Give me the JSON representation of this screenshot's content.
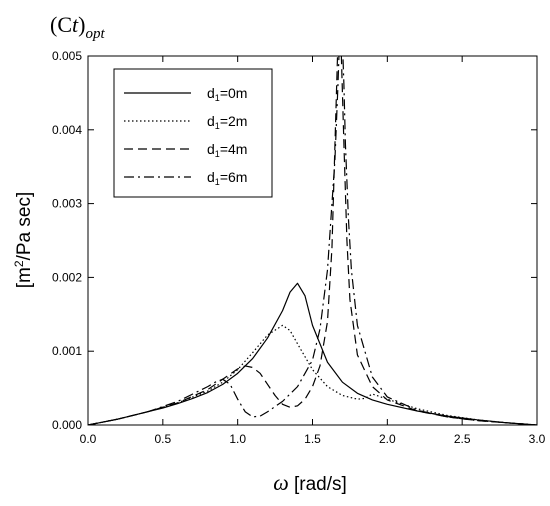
{
  "chart_data": {
    "type": "line",
    "title_main": "(C",
    "title_t": "t",
    "title_close": ")",
    "title_sub": "opt",
    "xlabel_symbol": "ω",
    "xlabel_unit": " [rad/s]",
    "ylabel_pre": "[m",
    "ylabel_sup": "2",
    "ylabel_post": "/Pa sec]",
    "xlim": [
      0.0,
      3.0
    ],
    "ylim": [
      0.0,
      0.005
    ],
    "xticks": [
      "0.0",
      "0.5",
      "1.0",
      "1.5",
      "2.0",
      "2.5",
      "3.0"
    ],
    "yticks": [
      "0.000",
      "0.001",
      "0.002",
      "0.003",
      "0.004",
      "0.005"
    ],
    "grid": false,
    "legend_position": "top-left",
    "series": [
      {
        "name_pre": "d",
        "name_sub": "1",
        "name_post": "=0m",
        "style": "solid",
        "x": [
          0.0,
          0.1,
          0.2,
          0.3,
          0.4,
          0.5,
          0.6,
          0.7,
          0.8,
          0.9,
          1.0,
          1.1,
          1.2,
          1.3,
          1.35,
          1.4,
          1.45,
          1.5,
          1.6,
          1.7,
          1.8,
          1.9,
          2.0,
          2.2,
          2.4,
          2.6,
          2.8,
          3.0
        ],
        "y": [
          0.0,
          4e-05,
          8e-05,
          0.00013,
          0.00018,
          0.00023,
          0.00029,
          0.00036,
          0.00044,
          0.00055,
          0.0007,
          0.0009,
          0.00118,
          0.00155,
          0.0018,
          0.00192,
          0.00175,
          0.00135,
          0.00085,
          0.00058,
          0.00043,
          0.00034,
          0.00028,
          0.00019,
          0.00012,
          7e-05,
          3e-05,
          0.0
        ]
      },
      {
        "name_pre": "d",
        "name_sub": "1",
        "name_post": "=2m",
        "style": "dotted",
        "x": [
          0.0,
          0.2,
          0.4,
          0.6,
          0.8,
          0.9,
          1.0,
          1.1,
          1.2,
          1.3,
          1.35,
          1.4,
          1.5,
          1.6,
          1.7,
          1.8,
          1.85,
          1.9,
          2.0,
          2.2,
          2.4,
          2.6,
          2.8,
          3.0
        ],
        "y": [
          0.0,
          8e-05,
          0.00018,
          0.0003,
          0.00046,
          0.00058,
          0.00075,
          0.00098,
          0.00122,
          0.00135,
          0.00128,
          0.0011,
          0.00075,
          0.00052,
          0.0004,
          0.00035,
          0.00036,
          0.00042,
          0.00035,
          0.00022,
          0.00013,
          7e-05,
          3e-05,
          0.0
        ]
      },
      {
        "name_pre": "d",
        "name_sub": "1",
        "name_post": "=4m",
        "style": "dashed",
        "x": [
          0.0,
          0.2,
          0.4,
          0.6,
          0.8,
          0.9,
          1.0,
          1.05,
          1.1,
          1.15,
          1.2,
          1.25,
          1.3,
          1.35,
          1.4,
          1.45,
          1.5,
          1.55,
          1.6,
          1.63,
          1.65,
          1.67,
          1.69,
          1.71,
          1.73,
          1.75,
          1.8,
          1.9,
          2.0,
          2.2,
          2.4,
          2.6,
          2.8,
          3.0
        ],
        "y": [
          0.0,
          8e-05,
          0.00018,
          0.0003,
          0.00048,
          0.00062,
          0.00076,
          0.0008,
          0.00078,
          0.0007,
          0.00055,
          0.0004,
          0.00028,
          0.00024,
          0.00026,
          0.00035,
          0.00052,
          0.0008,
          0.0014,
          0.0024,
          0.0038,
          0.0052,
          0.0052,
          0.0038,
          0.0025,
          0.0017,
          0.00095,
          0.00052,
          0.00034,
          0.00019,
          0.00011,
          6e-05,
          3e-05,
          0.0
        ]
      },
      {
        "name_pre": "d",
        "name_sub": "1",
        "name_post": "=6m",
        "style": "dashdot",
        "x": [
          0.0,
          0.2,
          0.4,
          0.6,
          0.8,
          0.85,
          0.9,
          0.95,
          1.0,
          1.05,
          1.1,
          1.15,
          1.2,
          1.3,
          1.4,
          1.5,
          1.55,
          1.6,
          1.65,
          1.67,
          1.68,
          1.69,
          1.7,
          1.71,
          1.72,
          1.74,
          1.76,
          1.8,
          1.9,
          2.0,
          2.2,
          2.4,
          2.6,
          2.8,
          3.0
        ],
        "y": [
          0.0,
          8e-05,
          0.00018,
          0.00032,
          0.00052,
          0.00058,
          0.00062,
          0.00055,
          0.00035,
          0.00018,
          0.00011,
          0.00012,
          0.00018,
          0.00032,
          0.00052,
          0.00088,
          0.0013,
          0.0021,
          0.0036,
          0.0046,
          0.0052,
          0.0052,
          0.0052,
          0.0046,
          0.0038,
          0.0028,
          0.0021,
          0.00135,
          0.00065,
          0.00038,
          0.0002,
          0.00011,
          6e-05,
          3e-05,
          0.0
        ]
      }
    ]
  }
}
